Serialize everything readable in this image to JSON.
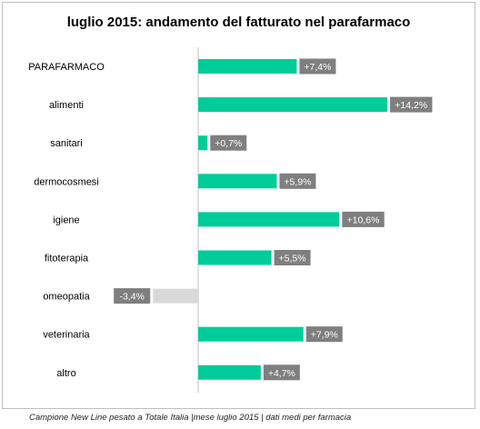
{
  "chart_data": {
    "type": "bar",
    "orientation": "horizontal",
    "title": "luglio 2015: andamento del fatturato nel parafarmaco",
    "categories": [
      "PARAFARMACO",
      "alimenti",
      "sanitari",
      "dermocosmesi",
      "igiene",
      "fitoterapia",
      "omeopatia",
      "veterinaria",
      "altro"
    ],
    "values": [
      7.4,
      14.2,
      0.7,
      5.9,
      10.6,
      5.5,
      -3.4,
      7.9,
      4.7
    ],
    "data_labels": [
      "+7,4%",
      "+14,2%",
      "+0,7%",
      "+5,9%",
      "+10,6%",
      "+5,5%",
      "-3,4%",
      "+7,9%",
      "+4,7%"
    ],
    "unit": "%",
    "grid": false,
    "legend": "none",
    "colors": {
      "positive": "#00cc99",
      "negative": "#d9d9d9",
      "label_bg": "#7f7f7f",
      "label_text": "#ffffff",
      "axis": "#bfbfbf"
    }
  },
  "footnote": "Campione New Line pesato a Totale Italia |mese luglio 2015 | dati medi per farmacia"
}
